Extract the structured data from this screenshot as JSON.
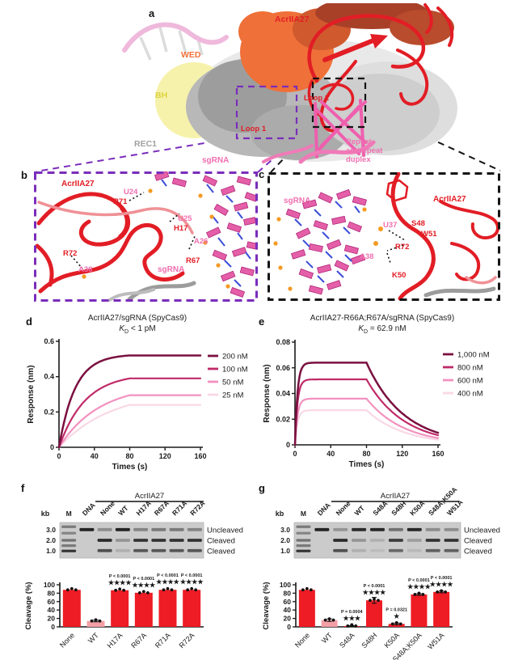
{
  "panels": {
    "a": {
      "label": "a",
      "acr": "AcrIIA27",
      "wed": "WED",
      "bh": "BH",
      "rec1": "REC1",
      "loop1": "Loop 1",
      "loop2": "Loop 2",
      "sgrna": "sgRNA",
      "duplex1": "Repeat–",
      "duplex2": "antirepeat",
      "duplex3": "duplex"
    },
    "b": {
      "label": "b",
      "acr": "AcrIIA27",
      "sgrna": "sgRNA",
      "u24": "U24",
      "r71": "R71",
      "u25": "U25",
      "h17": "H17",
      "a26": "A26",
      "r67": "R67",
      "r72": "R72",
      "a36": "A36"
    },
    "c": {
      "label": "c",
      "acr": "AcrIIA27",
      "sgrna": "sgRNA",
      "u37": "U37",
      "s48": "S48",
      "w51": "W51",
      "r72": "R72",
      "a38": "A38",
      "k50": "K50"
    },
    "d": {
      "label": "d"
    },
    "e": {
      "label": "e"
    },
    "f": {
      "label": "f"
    },
    "g": {
      "label": "g"
    }
  },
  "colors": {
    "red": "#e21d25",
    "pink": "#f06fb0",
    "orange": "#f2713a",
    "yellow": "#ddd23e",
    "gray": "#a0a0a0",
    "purple": "#7a2dbb",
    "bar_red": "#ee1c25",
    "bar_wt_pink": "#f4a0a6"
  },
  "chart_data": [
    {
      "id": "d",
      "type": "line",
      "title": "AcrIIA27/sgRNA (SpyCas9)",
      "kd": {
        "sym": "K",
        "sub": "D",
        "val": "< 1 pM"
      },
      "xlabel": "Times (s)",
      "ylabel": "Response (nm)",
      "xlim": [
        0,
        160
      ],
      "ylim": [
        0,
        0.6
      ],
      "xticks": [
        0,
        40,
        80,
        120,
        160
      ],
      "yticks": [
        0,
        0.2,
        0.4,
        0.6
      ],
      "assoc_end_s": 80,
      "total_s": 160,
      "dissociation": false,
      "legend_position": "right",
      "series": [
        {
          "name": "200 nM",
          "color": "#7a1040",
          "plateau": 0.52,
          "rise_rate": 0.055
        },
        {
          "name": "100 nM",
          "color": "#c02a68",
          "plateau": 0.39,
          "rise_rate": 0.034
        },
        {
          "name": "50 nM",
          "color": "#f291bf",
          "plateau": 0.295,
          "rise_rate": 0.022
        },
        {
          "name": "25 nM",
          "color": "#f9d8e6",
          "plateau": 0.24,
          "rise_rate": 0.017
        }
      ]
    },
    {
      "id": "e",
      "type": "line",
      "title": "AcrIIA27-R66A;R67A/sgRNA (SpyCas9)",
      "kd": {
        "sym": "K",
        "sub": "D",
        "val": "= 62.9 nM"
      },
      "xlabel": "Times (s)",
      "ylabel": "Response (nm)",
      "xlim": [
        0,
        160
      ],
      "ylim": [
        0,
        0.08
      ],
      "xticks": [
        0,
        40,
        80,
        120,
        160
      ],
      "yticks": [
        0,
        0.02,
        0.04,
        0.06,
        0.08
      ],
      "assoc_end_s": 80,
      "total_s": 160,
      "dissociation": true,
      "decay_rate": 0.024,
      "legend_position": "right",
      "series": [
        {
          "name": "1,000 nM",
          "color": "#7a1040",
          "plateau": 0.064,
          "rise_rate": 0.35
        },
        {
          "name": "800 nM",
          "color": "#c02a68",
          "plateau": 0.051,
          "rise_rate": 0.35
        },
        {
          "name": "600 nM",
          "color": "#f291bf",
          "plateau": 0.036,
          "rise_rate": 0.35
        },
        {
          "name": "400 nM",
          "color": "#f9d8e6",
          "plateau": 0.027,
          "rise_rate": 0.35
        }
      ]
    },
    {
      "id": "f",
      "type": "bar",
      "ylabel": "Cleavage (%)",
      "ylim": [
        0,
        100
      ],
      "yticks": [
        0,
        20,
        40,
        60,
        80,
        100
      ],
      "categories": [
        "None",
        "WT",
        "H17A",
        "R67A",
        "R71A",
        "R72A"
      ],
      "values": [
        88,
        14,
        87,
        81,
        88,
        88
      ],
      "errors": [
        0,
        2,
        0,
        0,
        0,
        0
      ],
      "bar_colors": [
        "#ee1c25",
        "#f4a0a6",
        "#ee1c25",
        "#ee1c25",
        "#ee1c25",
        "#ee1c25"
      ],
      "annotations": [
        null,
        null,
        {
          "p": "P < 0.0001",
          "stars": "★★★★"
        },
        {
          "p": "P < 0.0001",
          "stars": "★★★★"
        },
        {
          "p": "P < 0.0001",
          "stars": "★★★★"
        },
        {
          "p": "P < 0.0001",
          "stars": "★★★★"
        }
      ]
    },
    {
      "id": "g",
      "type": "bar",
      "ylabel": "Cleavage (%)",
      "ylim": [
        0,
        100
      ],
      "yticks": [
        0,
        20,
        40,
        60,
        80,
        100
      ],
      "categories": [
        "None",
        "WT",
        "S48A",
        "S48H",
        "K50A",
        "S48A;K50A",
        "W51A"
      ],
      "values": [
        88,
        16,
        2,
        63,
        7,
        77,
        83
      ],
      "errors": [
        0,
        3,
        1,
        7,
        2,
        2,
        2
      ],
      "bar_colors": [
        "#ee1c25",
        "#f4a0a6",
        "#ee1c25",
        "#ee1c25",
        "#ee1c25",
        "#ee1c25",
        "#ee1c25"
      ],
      "annotations": [
        null,
        null,
        {
          "p": "P = 0.0004",
          "stars": "★★★"
        },
        {
          "p": "P < 0.0001",
          "stars": "★★★★"
        },
        {
          "p": "P = 0.0321",
          "stars": "★"
        },
        {
          "p": "P < 0.0001",
          "stars": "★★★★"
        },
        {
          "p": "P < 0.0001",
          "stars": "★★★★"
        }
      ]
    }
  ],
  "gels": {
    "f": {
      "kb": "kb",
      "marks": [
        "3.0",
        "2.0",
        "1.0"
      ],
      "group": "AcrIIA27",
      "right_labels": [
        "Uncleaved",
        "Cleaved",
        "Cleaved"
      ],
      "lanes": [
        {
          "name": "M",
          "ladder": [
            [
              0.12,
              0.45
            ],
            [
              0.3,
              0.4
            ],
            [
              0.5,
              0.5
            ],
            [
              0.65,
              0.45
            ],
            [
              0.8,
              0.85
            ]
          ]
        },
        {
          "name": "DNA",
          "bands": [
            [
              0,
              0.95
            ]
          ]
        },
        {
          "name": "None",
          "bands": [
            [
              0,
              0.35
            ],
            [
              1,
              0.9
            ],
            [
              2,
              0.7
            ]
          ]
        },
        {
          "name": "WT",
          "bands": [
            [
              0,
              0.95
            ],
            [
              1,
              0.3
            ],
            [
              2,
              0.15
            ]
          ]
        },
        {
          "name": "H17A",
          "bands": [
            [
              0,
              0.4
            ],
            [
              1,
              0.85
            ],
            [
              2,
              0.65
            ]
          ]
        },
        {
          "name": "R67A",
          "bands": [
            [
              0,
              0.45
            ],
            [
              1,
              0.85
            ],
            [
              2,
              0.65
            ]
          ]
        },
        {
          "name": "R71A",
          "bands": [
            [
              0,
              0.45
            ],
            [
              1,
              0.85
            ],
            [
              2,
              0.65
            ]
          ]
        },
        {
          "name": "R72A",
          "bands": [
            [
              0,
              0.4
            ],
            [
              1,
              0.85
            ],
            [
              2,
              0.65
            ]
          ]
        }
      ]
    },
    "g": {
      "kb": "kb",
      "marks": [
        "3.0",
        "2.0",
        "1.0"
      ],
      "group": "AcrIIA27",
      "right_labels": [
        "Uncleaved",
        "Cleaved",
        "Cleaved"
      ],
      "lanes": [
        {
          "name": "M",
          "ladder": [
            [
              0.12,
              0.45
            ],
            [
              0.3,
              0.4
            ],
            [
              0.5,
              0.5
            ],
            [
              0.65,
              0.45
            ],
            [
              0.8,
              0.85
            ]
          ]
        },
        {
          "name": "DNA",
          "bands": [
            [
              0,
              0.95
            ]
          ]
        },
        {
          "name": "None",
          "bands": [
            [
              0,
              0.3
            ],
            [
              1,
              0.9
            ],
            [
              2,
              0.7
            ]
          ]
        },
        {
          "name": "WT",
          "bands": [
            [
              0,
              0.9
            ],
            [
              1,
              0.3
            ],
            [
              2,
              0.15
            ]
          ]
        },
        {
          "name": "S48A",
          "bands": [
            [
              0,
              0.92
            ],
            [
              1,
              0.15
            ],
            [
              2,
              0.08
            ]
          ]
        },
        {
          "name": "S48H",
          "bands": [
            [
              0,
              0.5
            ],
            [
              1,
              0.8
            ],
            [
              2,
              0.55
            ]
          ]
        },
        {
          "name": "K50A",
          "bands": [
            [
              0,
              0.92
            ],
            [
              1,
              0.25
            ],
            [
              2,
              0.1
            ]
          ]
        },
        {
          "name": "S48A;K50A",
          "bands": [
            [
              0,
              0.35
            ],
            [
              1,
              0.85
            ],
            [
              2,
              0.6
            ]
          ]
        },
        {
          "name": "W51A",
          "bands": [
            [
              0,
              0.35
            ],
            [
              1,
              0.85
            ],
            [
              2,
              0.6
            ]
          ]
        }
      ]
    }
  }
}
